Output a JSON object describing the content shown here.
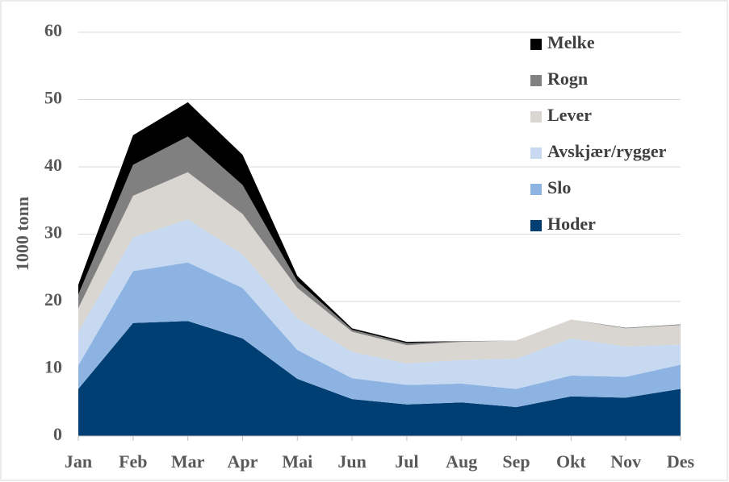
{
  "chart_data": {
    "type": "area",
    "stacked": true,
    "y_label": "1000 tonn",
    "categories": [
      "Jan",
      "Feb",
      "Mar",
      "Apr",
      "Mai",
      "Jun",
      "Jul",
      "Aug",
      "Sep",
      "Okt",
      "Nov",
      "Des"
    ],
    "series": [
      {
        "name": "Hoder",
        "color": "#003f73",
        "values": [
          7,
          16.8,
          17.1,
          14.5,
          8.5,
          5.5,
          4.7,
          5,
          4.3,
          5.9,
          5.7,
          7
        ]
      },
      {
        "name": "Slo",
        "color": "#8db3e2",
        "values": [
          3.5,
          7.7,
          8.7,
          7.5,
          4.3,
          3.1,
          2.9,
          2.8,
          2.7,
          3.1,
          3.1,
          3.6
        ]
      },
      {
        "name": "Avskjær/rygger",
        "color": "#c6d9f1",
        "values": [
          5,
          5,
          6.4,
          5,
          4.7,
          3.9,
          3.2,
          3.5,
          4.5,
          5.5,
          4.5,
          3
        ]
      },
      {
        "name": "Lever",
        "color": "#d9d5d0",
        "values": [
          3.5,
          6.2,
          7,
          6,
          4.5,
          3,
          2.7,
          2.7,
          2.7,
          2.8,
          2.7,
          2.9
        ]
      },
      {
        "name": "Rogn",
        "color": "#808080",
        "values": [
          2,
          4.6,
          5.3,
          4.3,
          1,
          0.3,
          0.3,
          0.1,
          0,
          0,
          0.1,
          0.1
        ]
      },
      {
        "name": "Melke",
        "color": "#000000",
        "values": [
          1.5,
          4.4,
          5.1,
          4.5,
          0.8,
          0.2,
          0.2,
          0,
          0,
          0,
          0,
          0
        ]
      }
    ],
    "ylim": [
      0,
      60
    ],
    "yticks": [
      0,
      10,
      20,
      30,
      40,
      50,
      60
    ],
    "grid": true,
    "legend": "upper right"
  }
}
